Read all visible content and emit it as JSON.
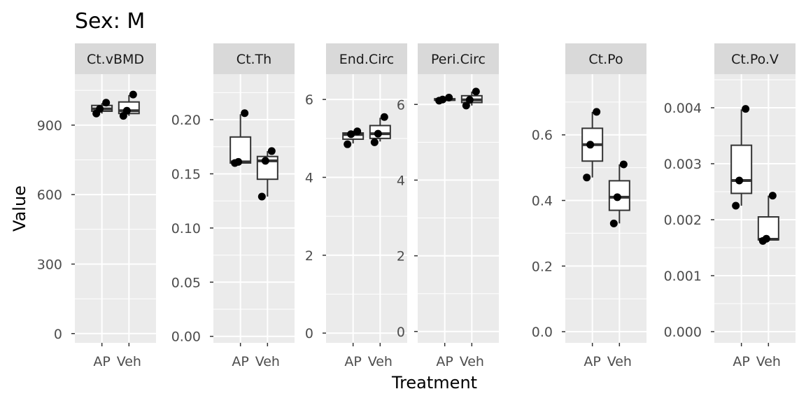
{
  "chart_data": {
    "type": "box",
    "title": "Sex: M",
    "xlabel": "Treatment",
    "ylabel": "Value",
    "categories": [
      "AP",
      "Veh"
    ],
    "facets": [
      {
        "name": "Ct.vBMD",
        "ylim": [
          -40,
          1120
        ],
        "yticks": [
          0,
          300,
          600,
          900
        ],
        "ytick_labels": [
          "0",
          "300",
          "600",
          "900"
        ],
        "boxes": [
          {
            "category": "AP",
            "min": 950,
            "q1": 960,
            "median": 970,
            "q3": 985,
            "max": 995
          },
          {
            "category": "Veh",
            "min": 940,
            "q1": 950,
            "median": 962,
            "q3": 1000,
            "max": 1030
          }
        ],
        "points": [
          {
            "category": "AP",
            "y": 997
          },
          {
            "category": "AP",
            "y": 970
          },
          {
            "category": "AP",
            "y": 950
          },
          {
            "category": "Veh",
            "y": 1032
          },
          {
            "category": "Veh",
            "y": 962
          },
          {
            "category": "Veh",
            "y": 940
          }
        ]
      },
      {
        "name": "Ct.Th",
        "ylim": [
          -0.006,
          0.242
        ],
        "yticks": [
          0,
          0.05,
          0.1,
          0.15,
          0.2
        ],
        "ytick_labels": [
          "0.00",
          "0.05",
          "0.10",
          "0.15",
          "0.20"
        ],
        "boxes": [
          {
            "category": "AP",
            "min": 0.16,
            "q1": 0.16,
            "median": 0.161,
            "q3": 0.184,
            "max": 0.205
          },
          {
            "category": "Veh",
            "min": 0.129,
            "q1": 0.145,
            "median": 0.162,
            "q3": 0.166,
            "max": 0.171
          }
        ],
        "points": [
          {
            "category": "AP",
            "y": 0.206
          },
          {
            "category": "AP",
            "y": 0.161
          },
          {
            "category": "AP",
            "y": 0.16
          },
          {
            "category": "Veh",
            "y": 0.171
          },
          {
            "category": "Veh",
            "y": 0.162
          },
          {
            "category": "Veh",
            "y": 0.129
          }
        ]
      },
      {
        "name": "End.Circ",
        "ylim": [
          -0.25,
          6.65
        ],
        "yticks": [
          0,
          2,
          4,
          6
        ],
        "ytick_labels": [
          "0",
          "2",
          "4",
          "6"
        ],
        "boxes": [
          {
            "category": "AP",
            "min": 4.87,
            "q1": 4.98,
            "median": 5.1,
            "q3": 5.14,
            "max": 5.18
          },
          {
            "category": "Veh",
            "min": 4.92,
            "q1": 5.0,
            "median": 5.12,
            "q3": 5.33,
            "max": 5.53
          }
        ],
        "points": [
          {
            "category": "AP",
            "y": 5.18
          },
          {
            "category": "AP",
            "y": 5.11
          },
          {
            "category": "AP",
            "y": 4.85
          },
          {
            "category": "Veh",
            "y": 5.55
          },
          {
            "category": "Veh",
            "y": 5.12
          },
          {
            "category": "Veh",
            "y": 4.9
          }
        ]
      },
      {
        "name": "Peri.Circ",
        "ylim": [
          -0.3,
          6.8
        ],
        "yticks": [
          0,
          2,
          4,
          6
        ],
        "ytick_labels": [
          "0",
          "2",
          "4",
          "6"
        ],
        "boxes": [
          {
            "category": "AP",
            "min": 6.1,
            "q1": 6.11,
            "median": 6.13,
            "q3": 6.15,
            "max": 6.17
          },
          {
            "category": "Veh",
            "min": 5.97,
            "q1": 6.05,
            "median": 6.12,
            "q3": 6.23,
            "max": 6.34
          }
        ],
        "points": [
          {
            "category": "AP",
            "y": 6.18
          },
          {
            "category": "AP",
            "y": 6.13
          },
          {
            "category": "AP",
            "y": 6.1
          },
          {
            "category": "Veh",
            "y": 6.34
          },
          {
            "category": "Veh",
            "y": 6.12
          },
          {
            "category": "Veh",
            "y": 5.97
          }
        ]
      },
      {
        "name": "Ct.Po",
        "ylim": [
          -0.034,
          0.785
        ],
        "yticks": [
          0,
          0.2,
          0.4,
          0.6
        ],
        "ytick_labels": [
          "0.0",
          "0.2",
          "0.4",
          "0.6"
        ],
        "boxes": [
          {
            "category": "AP",
            "min": 0.47,
            "q1": 0.52,
            "median": 0.57,
            "q3": 0.62,
            "max": 0.67
          },
          {
            "category": "Veh",
            "min": 0.33,
            "q1": 0.37,
            "median": 0.41,
            "q3": 0.46,
            "max": 0.51
          }
        ],
        "points": [
          {
            "category": "AP",
            "y": 0.67
          },
          {
            "category": "AP",
            "y": 0.57
          },
          {
            "category": "AP",
            "y": 0.47
          },
          {
            "category": "Veh",
            "y": 0.51
          },
          {
            "category": "Veh",
            "y": 0.41
          },
          {
            "category": "Veh",
            "y": 0.33
          }
        ]
      },
      {
        "name": "Ct.Po.V",
        "ylim": [
          -0.0002,
          0.0046
        ],
        "yticks": [
          0,
          0.001,
          0.002,
          0.003,
          0.004
        ],
        "ytick_labels": [
          "0.000",
          "0.001",
          "0.002",
          "0.003",
          "0.004"
        ],
        "boxes": [
          {
            "category": "AP",
            "min": 0.00225,
            "q1": 0.00247,
            "median": 0.0027,
            "q3": 0.00333,
            "max": 0.00397
          },
          {
            "category": "Veh",
            "min": 0.00163,
            "q1": 0.00164,
            "median": 0.00165,
            "q3": 0.00205,
            "max": 0.00243
          }
        ],
        "points": [
          {
            "category": "AP",
            "y": 0.00398
          },
          {
            "category": "AP",
            "y": 0.0027
          },
          {
            "category": "AP",
            "y": 0.00225
          },
          {
            "category": "Veh",
            "y": 0.00243
          },
          {
            "category": "Veh",
            "y": 0.00166
          },
          {
            "category": "Veh",
            "y": 0.00162
          }
        ]
      }
    ],
    "grid": true,
    "legend": "none",
    "colors": {
      "panel_background": "#EBEBEB",
      "strip_background": "#D9D9D9",
      "grid_major": "#FFFFFF",
      "box_fill": "#FFFFFF",
      "box_line": "#333333",
      "point": "#000000",
      "tick_label": "#4D4D4D"
    }
  }
}
